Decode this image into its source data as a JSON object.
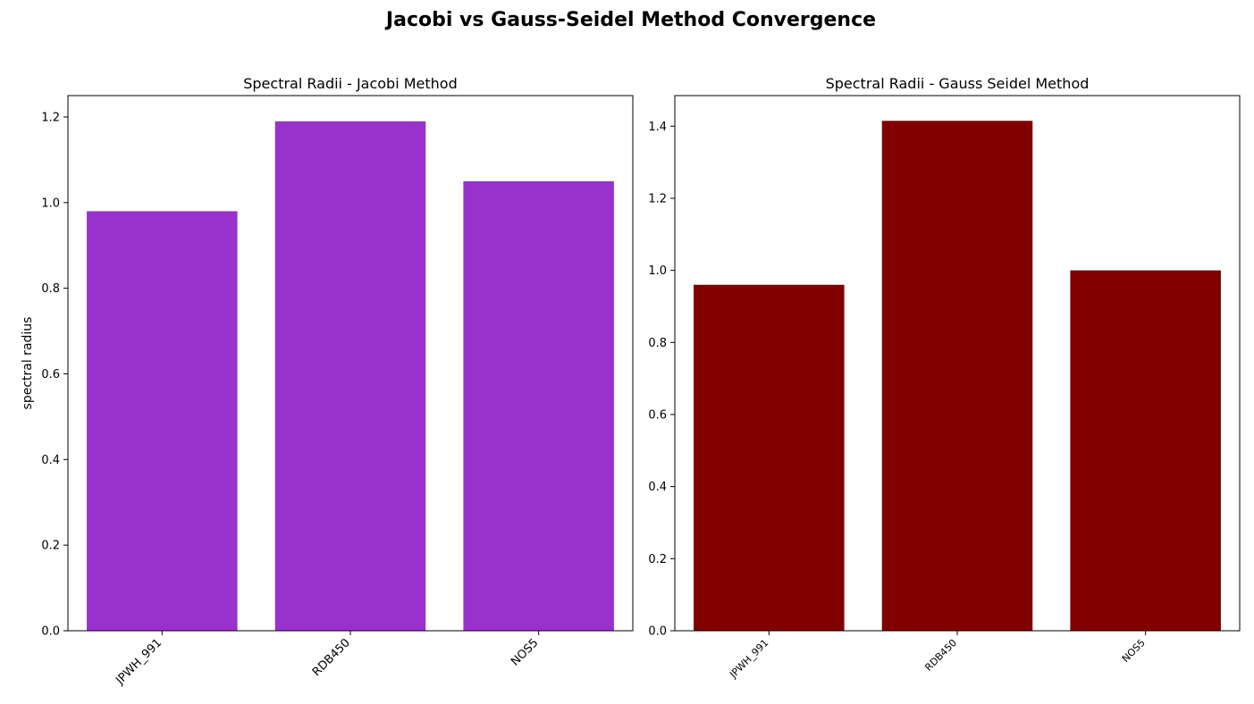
{
  "figure": {
    "title": "Jacobi vs Gauss-Seidel Method Convergence"
  },
  "chart_data": [
    {
      "type": "bar",
      "title": "Spectral Radii - Jacobi Method",
      "xlabel": "",
      "ylabel": "spectral radius",
      "categories": [
        "JPWH_991",
        "RDB450",
        "NOS5"
      ],
      "values": [
        0.98,
        1.19,
        1.05
      ],
      "ylim": [
        0,
        1.25
      ],
      "yticks": [
        0.0,
        0.2,
        0.4,
        0.6,
        0.8,
        1.0,
        1.2
      ],
      "ytick_labels": [
        "0.0",
        "0.2",
        "0.4",
        "0.6",
        "0.8",
        "1.0",
        "1.2"
      ],
      "bar_color": "#9932CC",
      "grid": false,
      "legend": "none"
    },
    {
      "type": "bar",
      "title": "Spectral Radii - Gauss Seidel Method",
      "xlabel": "",
      "ylabel": "",
      "categories": [
        "JPWH_991",
        "RDB450",
        "NOS5"
      ],
      "values": [
        0.96,
        1.415,
        1.0
      ],
      "ylim": [
        0,
        1.485
      ],
      "yticks": [
        0.0,
        0.2,
        0.4,
        0.6,
        0.8,
        1.0,
        1.2,
        1.4
      ],
      "ytick_labels": [
        "0.0",
        "0.2",
        "0.4",
        "0.6",
        "0.8",
        "1.0",
        "1.2",
        "1.4"
      ],
      "bar_color": "#800000",
      "grid": false,
      "legend": "none"
    }
  ]
}
